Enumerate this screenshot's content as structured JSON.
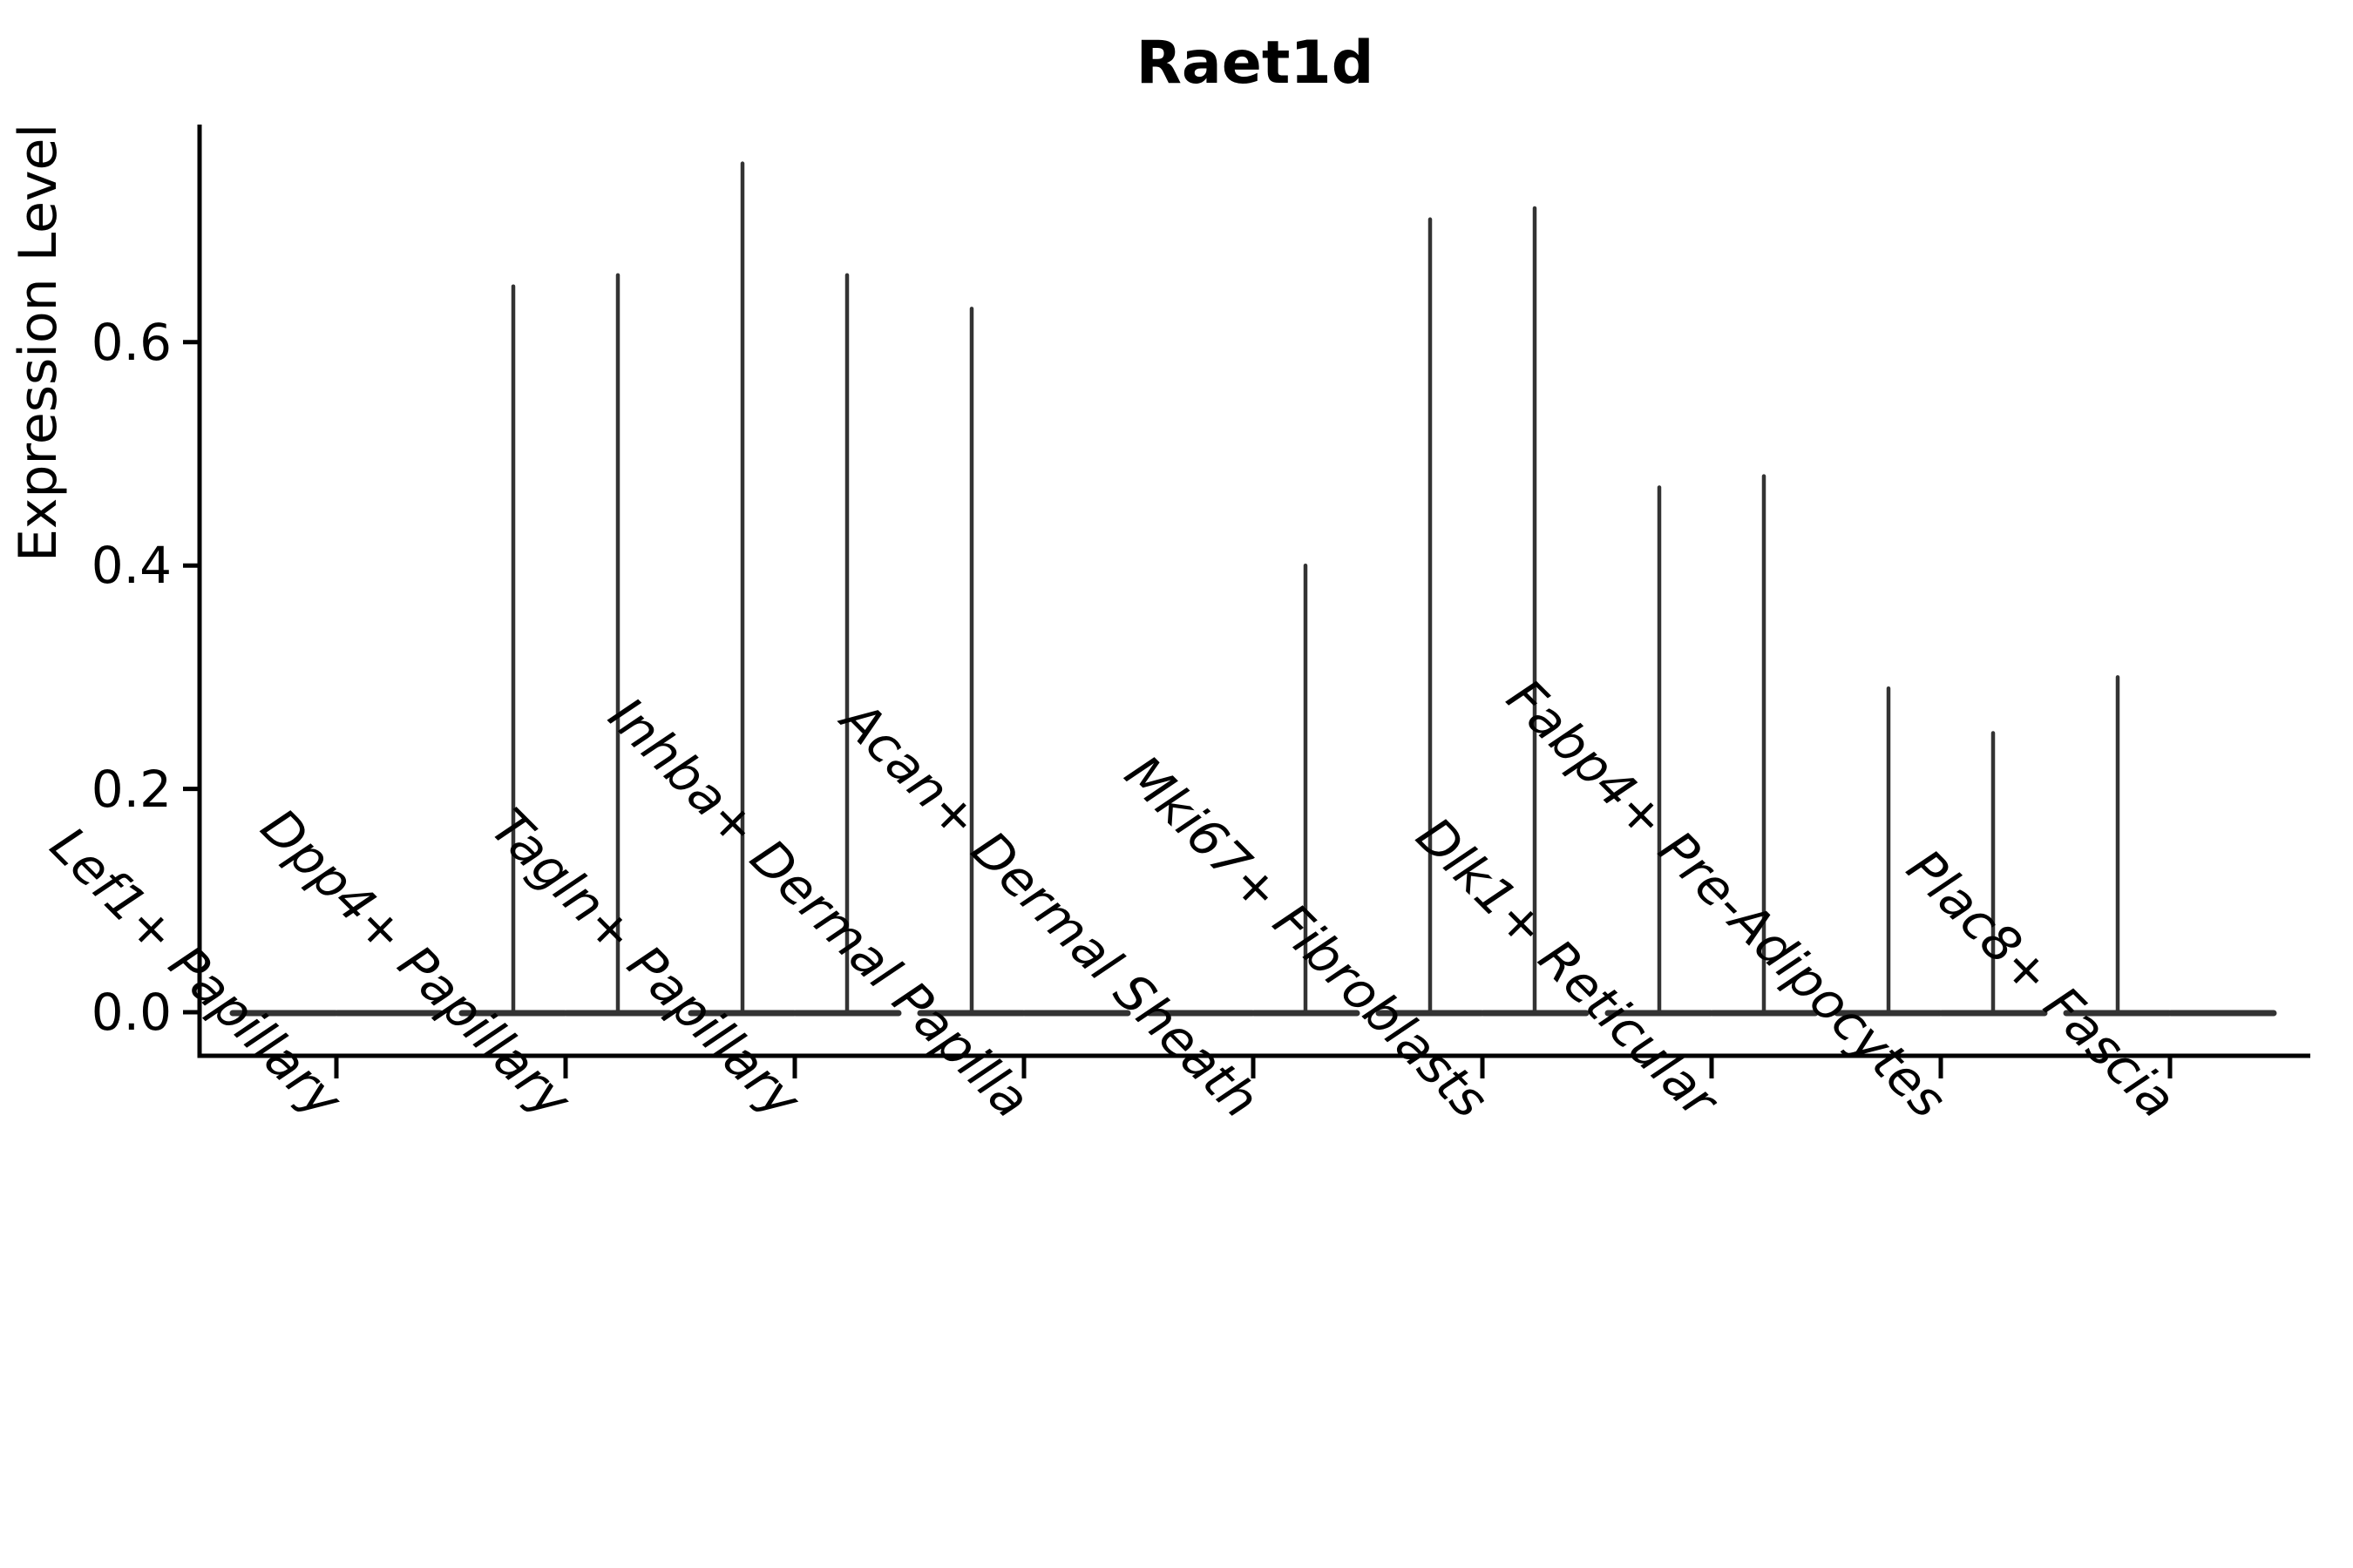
{
  "chart_data": {
    "type": "violin",
    "title": "Raet1d",
    "ylabel": "Expression Level",
    "xlabel": "",
    "categories": [
      "Lef1+ Papillary",
      "Dpp4+ Papillary",
      "Tagln+ Papillary",
      "Inhba+ Dermal Papilla",
      "Acan+ Dermal Sheath",
      "Mki67+ Fibroblasts",
      "Dlk1+ Reticular",
      "Fabp4+ Pre-Adipocytes",
      "Plac8+ Fascia"
    ],
    "violins_per_category": 2,
    "violin_max": [
      [
        0,
        0
      ],
      [
        0.65,
        0.66
      ],
      [
        0.76,
        0.66
      ],
      [
        0.63,
        0
      ],
      [
        0,
        0.4
      ],
      [
        0.71,
        0.72
      ],
      [
        0.47,
        0.48
      ],
      [
        0.29,
        0.25
      ],
      [
        0.3,
        0
      ]
    ],
    "ytick_values": [
      0.0,
      0.2,
      0.4,
      0.6
    ],
    "ytick_labels": [
      "0.0",
      "0.2",
      "0.4",
      "0.6"
    ],
    "ylim": [
      -0.04,
      0.79
    ],
    "grid": false,
    "legend": "none",
    "colors": {
      "violin": "#333333",
      "axis": "#000000",
      "text": "#000000",
      "background": "#ffffff"
    }
  }
}
